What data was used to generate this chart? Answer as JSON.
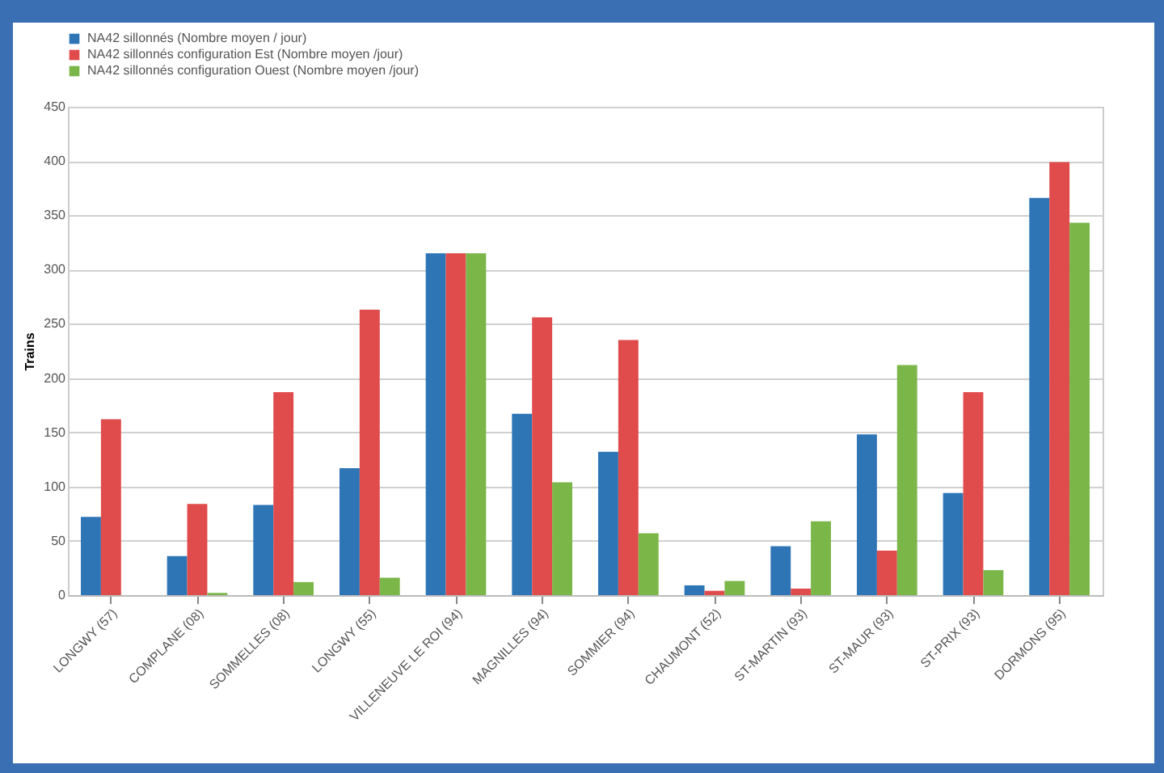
{
  "chart_data": {
    "type": "bar",
    "ylabel": "Trains",
    "categories": [
      "LONGWY (57)",
      "COMPLANE (08)",
      "SOMMELLES (08)",
      "LONGWY (55)",
      "VILLENEUVE LE ROI (94)",
      "MAGNILLES (94)",
      "SOMMIER (94)",
      "CHAUMONT (52)",
      "ST-MARTIN (93)",
      "ST-MAUR (93)",
      "ST-PRIX (93)",
      "DORMONS (95)"
    ],
    "series": [
      {
        "name": "NA42 sillonnés (Nombre moyen / jour)",
        "color": "#2e75b6",
        "values": [
          72,
          36,
          83,
          117,
          315,
          167,
          132,
          9,
          45,
          148,
          94,
          366
        ]
      },
      {
        "name": "NA42 sillonnés configuration Est (Nombre moyen /jour)",
        "color": "#e04b4b",
        "values": [
          162,
          84,
          187,
          263,
          315,
          256,
          235,
          4,
          6,
          41,
          187,
          399
        ]
      },
      {
        "name": "NA42 sillonnés configuration Ouest (Nombre moyen /jour)",
        "color": "#7ab648",
        "values": [
          null,
          2,
          12,
          16,
          315,
          104,
          57,
          13,
          68,
          212,
          23,
          343
        ]
      }
    ],
    "ylim": [
      0,
      450
    ],
    "yticks": [
      0,
      50,
      100,
      150,
      200,
      250,
      300,
      350,
      400,
      450
    ],
    "grid": "y",
    "legend": "top"
  }
}
